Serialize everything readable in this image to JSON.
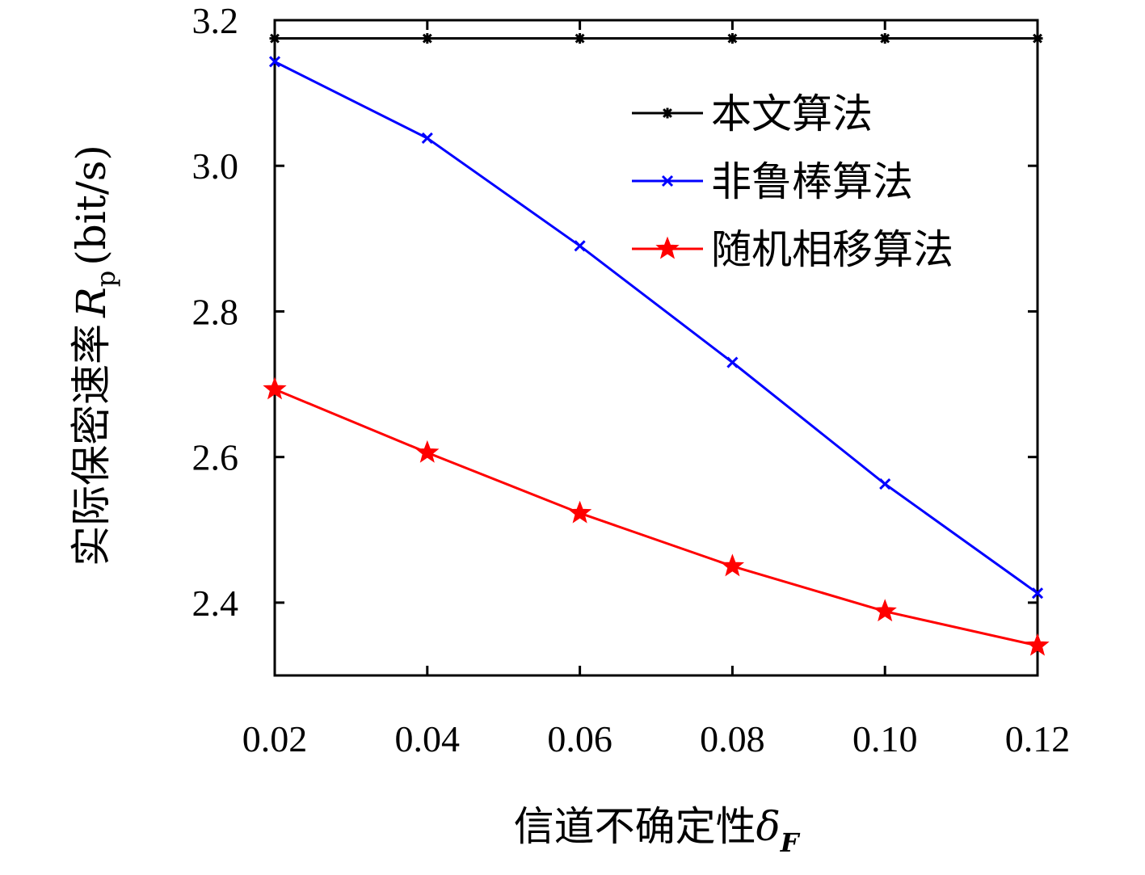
{
  "chart_data": {
    "type": "line",
    "xlabel": "信道不确定性",
    "xlabel_symbol": "δ",
    "xlabel_subscript": "F",
    "ylabel": "实际保密速率",
    "ylabel_symbol": "R",
    "ylabel_subscript": "p",
    "ylabel_unit": "(bit/s)",
    "x": [
      0.02,
      0.04,
      0.06,
      0.08,
      0.1,
      0.12
    ],
    "x_tick_labels": [
      "0.02",
      "0.04",
      "0.06",
      "0.08",
      "0.10",
      "0.12"
    ],
    "xlim": [
      0.02,
      0.12
    ],
    "ylim": [
      2.3,
      3.2
    ],
    "y_ticks": [
      2.4,
      2.6,
      2.8,
      3.0,
      3.2
    ],
    "y_tick_labels": [
      "2.4",
      "2.6",
      "2.8",
      "3.0",
      "3.2"
    ],
    "grid": false,
    "legend_position": "top-right",
    "series": [
      {
        "name": "本文算法",
        "values": [
          3.175,
          3.175,
          3.175,
          3.175,
          3.175,
          3.175
        ],
        "color": "#000000",
        "marker": "asterisk"
      },
      {
        "name": "非鲁棒算法",
        "values": [
          3.143,
          3.038,
          2.89,
          2.73,
          2.563,
          2.413
        ],
        "color": "#0000ff",
        "marker": "x"
      },
      {
        "name": "随机相移算法",
        "values": [
          2.693,
          2.606,
          2.523,
          2.45,
          2.388,
          2.341
        ],
        "color": "#ff0000",
        "marker": "star"
      }
    ]
  }
}
